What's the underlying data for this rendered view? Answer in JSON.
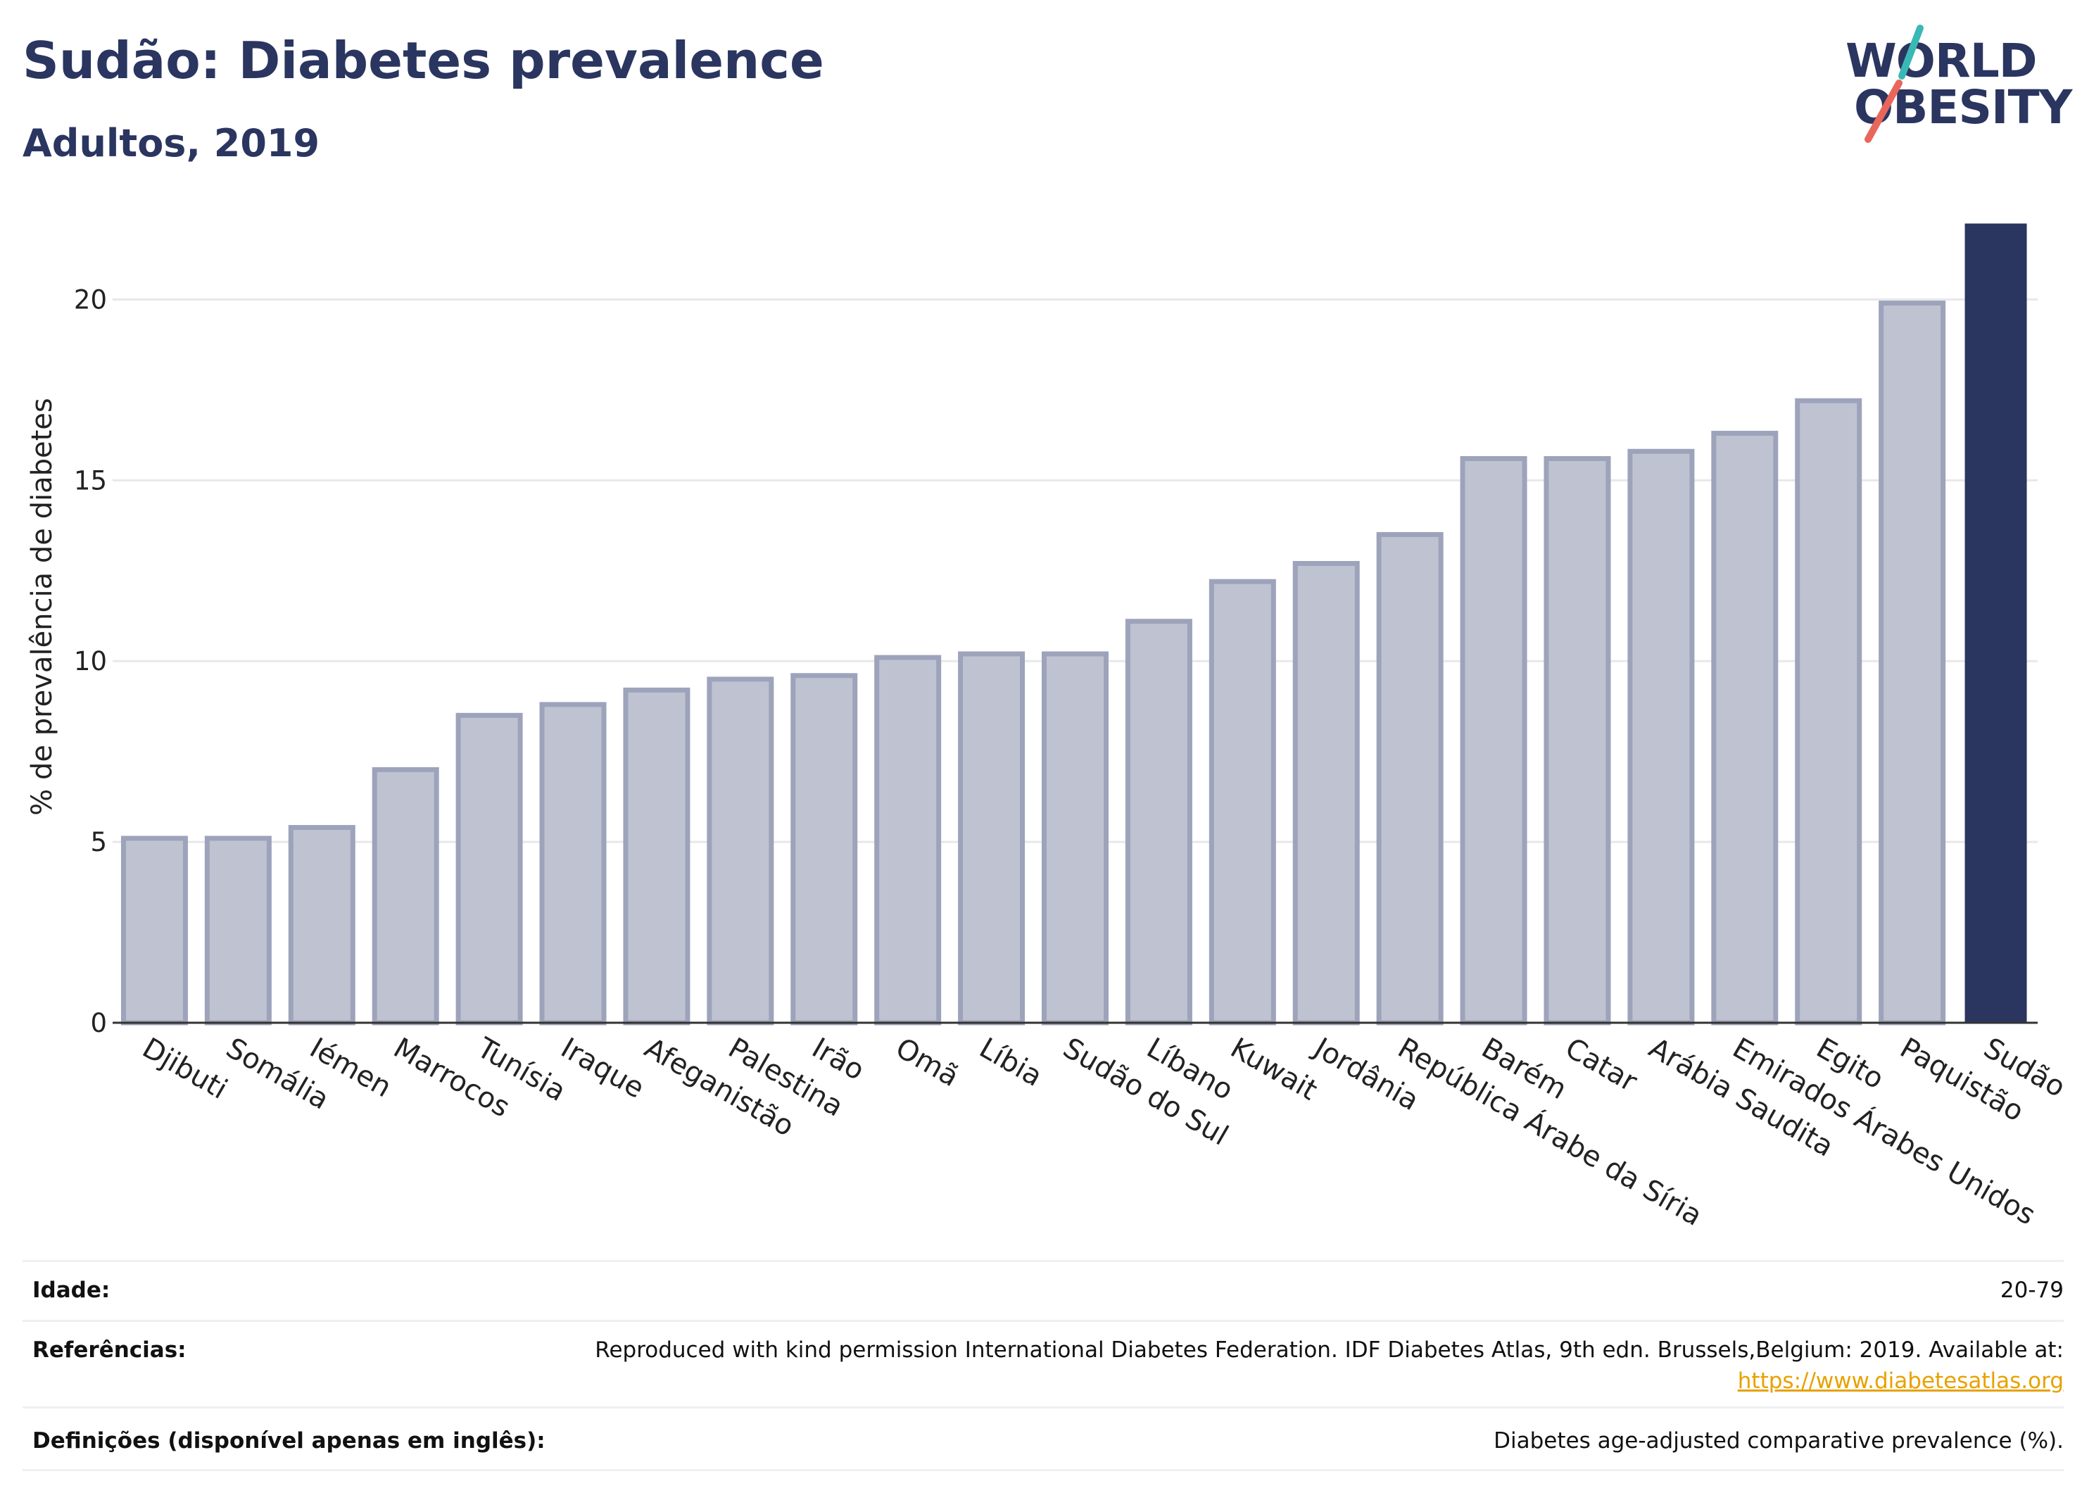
{
  "header": {
    "title": "Sudão: Diabetes prevalence",
    "subtitle": "Adultos, 2019"
  },
  "logo": {
    "line1": "WORLD",
    "line2": "OBESITY"
  },
  "colors": {
    "title": "#2a3560",
    "bar": "#bfc3d1",
    "bar_outline": "#9da3ba",
    "highlight": "#2a3560",
    "grid": "#e8e8ec",
    "link": "#e8a100",
    "logo_teal": "#3ab8b5",
    "logo_coral": "#e8665a"
  },
  "chart_data": {
    "type": "bar",
    "ylabel": "% de prevalência de diabetes",
    "xlabel": "",
    "ylim": [
      0,
      22.5
    ],
    "yticks": [
      0,
      5,
      10,
      15,
      20
    ],
    "grid": true,
    "highlight": "Sudão",
    "categories": [
      "Djibuti",
      "Somália",
      "Iémen",
      "Marrocos",
      "Tunísia",
      "Iraque",
      "Afeganistão",
      "Palestina",
      "Irão",
      "Omã",
      "Líbia",
      "Sudão do Sul",
      "Líbano",
      "Kuwait",
      "Jordânia",
      "República Árabe da Síria",
      "Barém",
      "Catar",
      "Arábia Saudita",
      "Emirados Árabes Unidos",
      "Egito",
      "Paquistão",
      "Sudão"
    ],
    "values": [
      5.1,
      5.1,
      5.4,
      7.0,
      8.5,
      8.8,
      9.2,
      9.5,
      9.6,
      10.1,
      10.2,
      10.2,
      11.1,
      12.2,
      12.7,
      13.5,
      15.6,
      15.6,
      15.8,
      16.3,
      17.2,
      19.9,
      22.1
    ]
  },
  "info_table": {
    "age_label": "Idade:",
    "age_value": "20-79",
    "references_label": "Referências:",
    "references_text": "Reproduced with kind permission International Diabetes Federation. IDF Diabetes Atlas, 9th edn. Brussels,Belgium: 2019. Available at:",
    "references_link": "https://www.diabetesatlas.org",
    "definitions_label": "Definições (disponível apenas em inglês):",
    "definitions_value": "Diabetes age-adjusted comparative prevalence (%)."
  }
}
